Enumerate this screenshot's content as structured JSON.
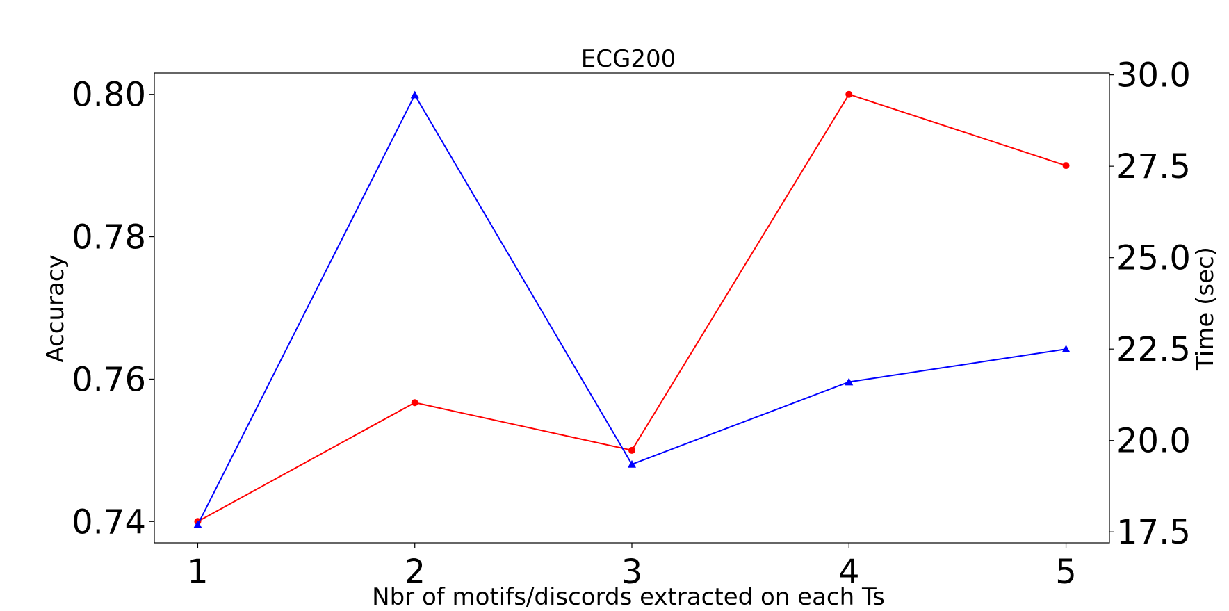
{
  "chart_data": {
    "type": "line",
    "title": "ECG200",
    "xlabel": "Nbr of motifs/discords extracted on each Ts",
    "ylabel_left": "Accuracy",
    "ylabel_right": "Time (sec)",
    "x": [
      1,
      2,
      3,
      4,
      5
    ],
    "xticks": [
      "1",
      "2",
      "3",
      "4",
      "5"
    ],
    "xlim": [
      0.8,
      5.2
    ],
    "yticks_left": [
      "0.74",
      "0.76",
      "0.78",
      "0.80"
    ],
    "ylim_left": [
      0.737,
      0.803
    ],
    "yticks_right": [
      "17.5",
      "20.0",
      "22.5",
      "25.0",
      "27.5",
      "30.0"
    ],
    "ylim_right": [
      17.2,
      30.05
    ],
    "grid": false,
    "series": [
      {
        "axis": "left",
        "color": "#ff0000",
        "marker": "circle",
        "values": [
          0.74,
          0.7567,
          0.75,
          0.8,
          0.79
        ]
      },
      {
        "axis": "right",
        "color": "#0000ff",
        "marker": "triangle",
        "values": [
          17.7,
          29.45,
          19.35,
          21.6,
          22.5
        ]
      }
    ]
  }
}
